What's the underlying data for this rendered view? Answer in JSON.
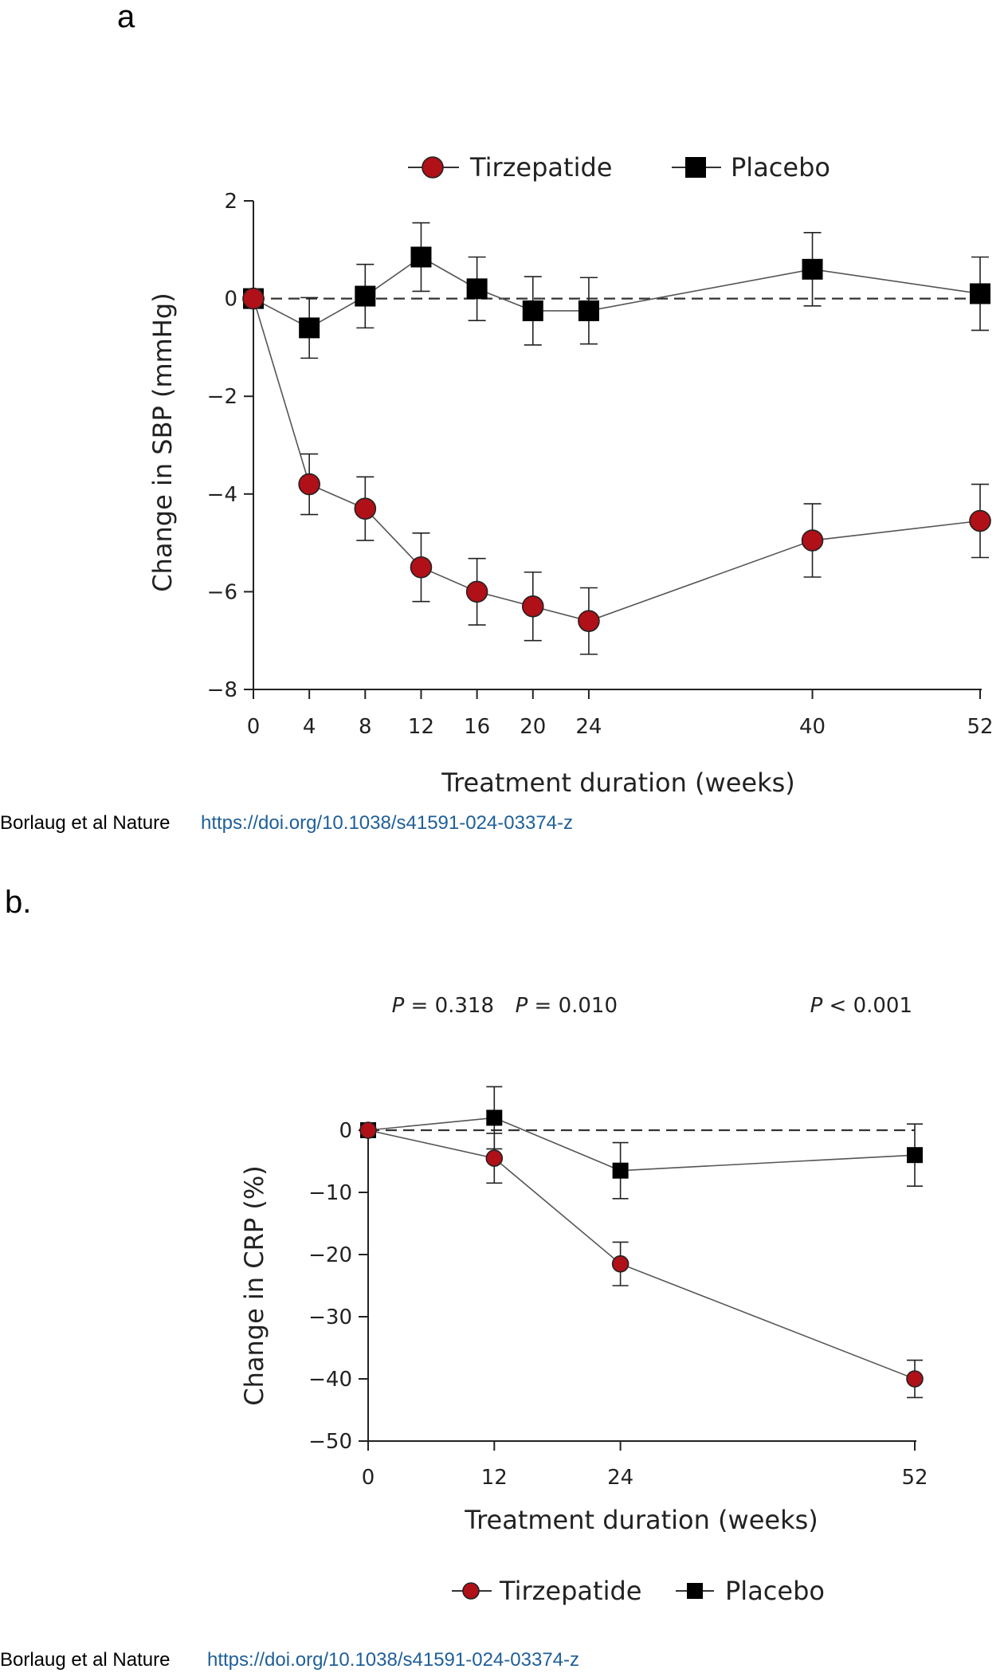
{
  "colors": {
    "tirzepatide": "#b01018",
    "placebo": "#000000",
    "link": "#1f5f99",
    "axis": "#222222"
  },
  "chart_data": [
    {
      "panel": "a",
      "type": "line",
      "xlabel": "Treatment duration  (weeks)",
      "ylabel": "Change in SBP (mmHg)",
      "ylim": [
        -8,
        2
      ],
      "yticks": [
        2,
        0,
        -2,
        -4,
        -6,
        -8
      ],
      "yticklabels": [
        "2",
        "0",
        "−2",
        "−4",
        "−6",
        "−8"
      ],
      "x": [
        0,
        4,
        8,
        12,
        16,
        20,
        24,
        40,
        52
      ],
      "xticklabels": [
        "0",
        "4",
        "8",
        "12",
        "16",
        "20",
        "24",
        "40",
        "52"
      ],
      "reference_line": 0,
      "legend": [
        "Tirzepatide",
        "Placebo"
      ],
      "series": [
        {
          "name": "Tirzepatide",
          "marker": "circle",
          "values": [
            0,
            -3.8,
            -4.3,
            -5.5,
            -6.0,
            -6.3,
            -6.6,
            -4.95,
            -4.55
          ],
          "err": [
            0,
            0.62,
            0.65,
            0.7,
            0.68,
            0.7,
            0.68,
            0.75,
            0.75
          ]
        },
        {
          "name": "Placebo",
          "marker": "square",
          "values": [
            0,
            -0.6,
            0.05,
            0.85,
            0.2,
            -0.25,
            -0.25,
            0.6,
            0.1
          ],
          "err": [
            0,
            0.62,
            0.65,
            0.7,
            0.65,
            0.7,
            0.68,
            0.75,
            0.75
          ]
        }
      ],
      "citation": {
        "prefix": "Borlaug et al Nature",
        "link": "https://doi.org/10.1038/s41591-024-03374-z"
      }
    },
    {
      "panel": "b.",
      "type": "line",
      "xlabel": "Treatment duration (weeks)",
      "ylabel": "Change in CRP (%)",
      "ylim": [
        -50,
        0
      ],
      "yticks": [
        0,
        -10,
        -20,
        -30,
        -40,
        -50
      ],
      "yticklabels": [
        "0",
        "−10",
        "−20",
        "−30",
        "−40",
        "−50"
      ],
      "x": [
        0,
        12,
        24,
        52
      ],
      "xticklabels": [
        "0",
        "12",
        "24",
        "52"
      ],
      "reference_line": 0,
      "legend": [
        "Tirzepatide",
        "Placebo"
      ],
      "annotations": [
        {
          "x": 12,
          "label": "P",
          "text": " = 0.318"
        },
        {
          "x": 24,
          "label": "P",
          "text": " = 0.010"
        },
        {
          "x": 52,
          "label": "P",
          "text": " < 0.001"
        }
      ],
      "series": [
        {
          "name": "Tirzepatide",
          "marker": "circle",
          "values": [
            0,
            -4.5,
            -21.5,
            -40.0
          ],
          "err": [
            0,
            4.0,
            3.5,
            3.0
          ]
        },
        {
          "name": "Placebo",
          "marker": "square",
          "values": [
            0,
            2.0,
            -6.5,
            -4.0
          ],
          "err": [
            0,
            5.0,
            4.5,
            5.0
          ]
        }
      ],
      "citation": {
        "prefix": "Borlaug et al Nature",
        "link": "https://doi.org/10.1038/s41591-024-03374-z"
      }
    }
  ]
}
